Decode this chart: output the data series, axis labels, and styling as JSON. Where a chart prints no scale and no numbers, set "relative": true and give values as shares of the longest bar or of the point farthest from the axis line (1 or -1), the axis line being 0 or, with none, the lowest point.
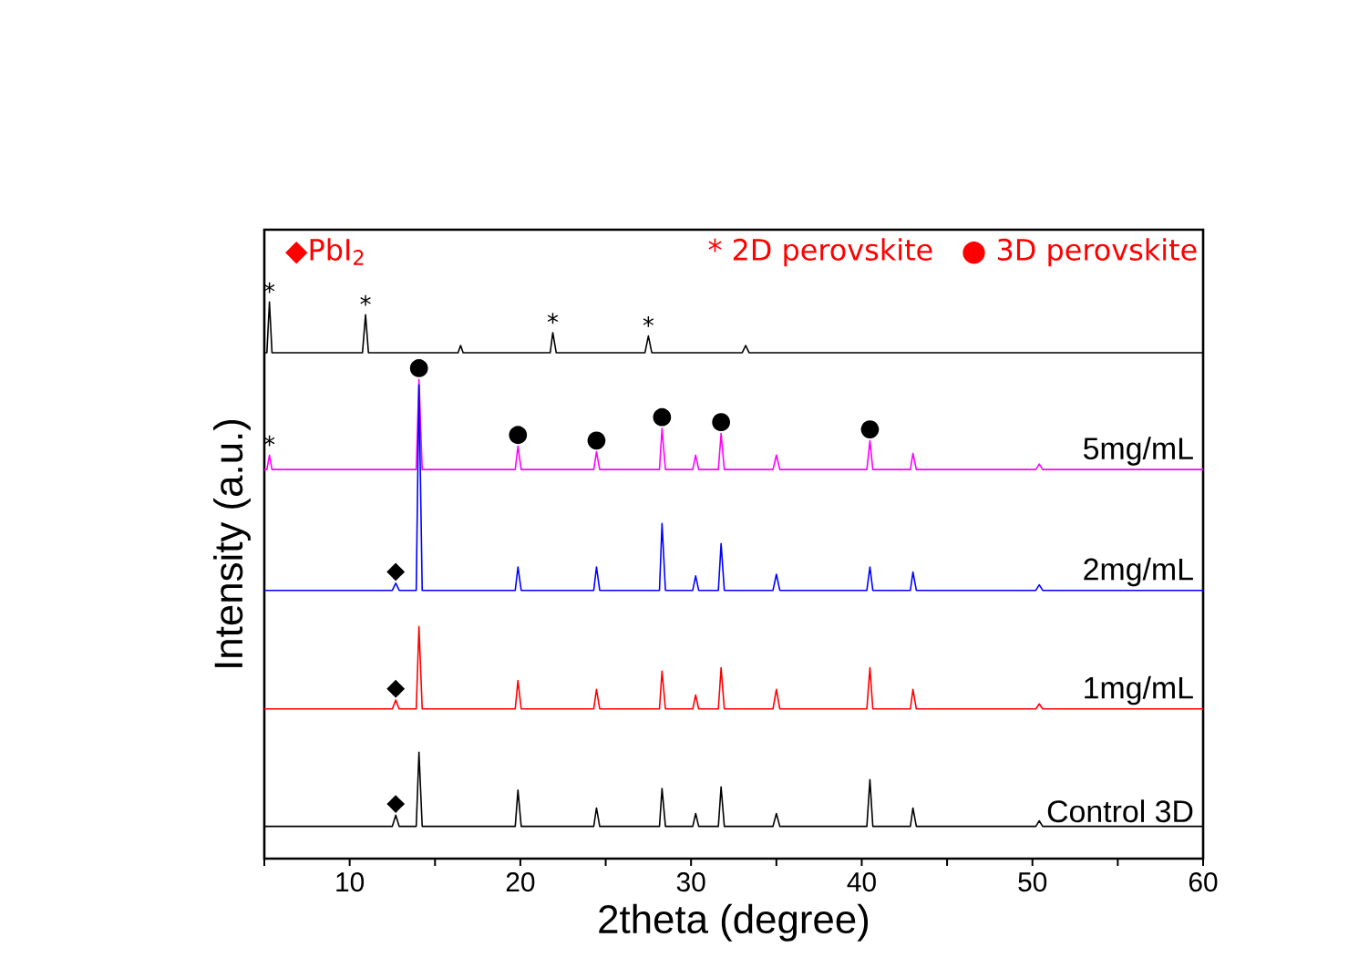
{
  "chart_data": {
    "type": "line",
    "relative": true,
    "xlabel": "2theta (degree)",
    "ylabel": "Intensity (a.u.)",
    "xlim": [
      5,
      60
    ],
    "xticks": [
      {
        "value": 5,
        "label": null
      },
      10,
      {
        "value": 15,
        "label": null
      },
      20,
      {
        "value": 25,
        "label": null
      },
      30,
      {
        "value": 35,
        "label": null
      },
      40,
      {
        "value": 45,
        "label": null
      },
      50,
      {
        "value": 55,
        "label": null
      },
      60
    ],
    "series": [
      {
        "color": "#000000",
        "x": [
          5,
          5.15,
          5.3,
          5.45,
          10.75,
          10.93,
          11.1,
          16.35,
          16.5,
          16.65,
          21.75,
          21.9,
          22.1,
          27.3,
          27.5,
          27.7,
          33.0,
          33.2,
          33.4,
          60
        ],
        "values": [
          0.909,
          0.909,
          1.0,
          0.909,
          0.909,
          0.977,
          0.909,
          0.909,
          0.922,
          0.909,
          0.909,
          0.945,
          0.909,
          0.909,
          0.939,
          0.909,
          0.909,
          0.922,
          0.909,
          0.909
        ]
      },
      {
        "name": "5mg/mL",
        "color": "#ff00ff",
        "x": [
          5,
          5.15,
          5.3,
          5.45,
          13.9,
          14.06,
          14.25,
          19.7,
          19.86,
          20.05,
          24.3,
          24.46,
          24.65,
          28.15,
          28.3,
          28.5,
          30.1,
          30.27,
          30.45,
          31.6,
          31.76,
          31.95,
          34.8,
          35.0,
          35.2,
          40.3,
          40.48,
          40.65,
          42.85,
          43.0,
          43.2,
          50.2,
          50.4,
          50.6,
          60
        ],
        "values": [
          0.699,
          0.699,
          0.725,
          0.699,
          0.699,
          0.861,
          0.699,
          0.699,
          0.741,
          0.699,
          0.699,
          0.731,
          0.699,
          0.699,
          0.773,
          0.699,
          0.699,
          0.725,
          0.699,
          0.699,
          0.764,
          0.699,
          0.699,
          0.725,
          0.699,
          0.699,
          0.751,
          0.699,
          0.699,
          0.728,
          0.699,
          0.699,
          0.709,
          0.699,
          0.699
        ]
      },
      {
        "name": "2mg/mL",
        "color": "#0000ff",
        "x": [
          5,
          12.5,
          12.7,
          12.9,
          13.9,
          14.06,
          14.25,
          19.7,
          19.86,
          20.05,
          24.3,
          24.46,
          24.65,
          28.15,
          28.3,
          28.5,
          30.1,
          30.27,
          30.45,
          31.6,
          31.76,
          31.95,
          34.8,
          35.0,
          35.2,
          40.3,
          40.48,
          40.65,
          42.85,
          43.0,
          43.2,
          50.2,
          50.4,
          50.6,
          60
        ],
        "values": [
          0.482,
          0.482,
          0.495,
          0.482,
          0.482,
          0.851,
          0.482,
          0.482,
          0.524,
          0.482,
          0.482,
          0.524,
          0.482,
          0.482,
          0.602,
          0.482,
          0.482,
          0.508,
          0.482,
          0.482,
          0.566,
          0.482,
          0.482,
          0.511,
          0.482,
          0.482,
          0.524,
          0.482,
          0.482,
          0.515,
          0.482,
          0.482,
          0.492,
          0.482,
          0.482
        ]
      },
      {
        "name": "1mg/mL",
        "color": "#ff0000",
        "x": [
          5,
          12.5,
          12.7,
          12.9,
          13.9,
          14.06,
          14.25,
          19.7,
          19.86,
          20.05,
          24.3,
          24.46,
          24.65,
          28.15,
          28.3,
          28.5,
          30.1,
          30.27,
          30.45,
          31.6,
          31.76,
          31.95,
          34.8,
          35.0,
          35.2,
          40.3,
          40.48,
          40.65,
          42.85,
          43.0,
          43.2,
          50.2,
          50.4,
          50.6,
          60
        ],
        "values": [
          0.269,
          0.269,
          0.285,
          0.269,
          0.269,
          0.417,
          0.269,
          0.269,
          0.32,
          0.269,
          0.269,
          0.304,
          0.269,
          0.269,
          0.337,
          0.269,
          0.269,
          0.294,
          0.269,
          0.269,
          0.343,
          0.269,
          0.269,
          0.304,
          0.269,
          0.269,
          0.343,
          0.269,
          0.269,
          0.304,
          0.269,
          0.269,
          0.278,
          0.269,
          0.269
        ]
      },
      {
        "name": "Control 3D",
        "color": "#000000",
        "x": [
          5,
          12.5,
          12.7,
          12.9,
          13.9,
          14.06,
          14.25,
          19.7,
          19.86,
          20.05,
          24.3,
          24.46,
          24.65,
          28.15,
          28.3,
          28.5,
          30.1,
          30.27,
          30.45,
          31.6,
          31.76,
          31.95,
          34.8,
          35.0,
          35.2,
          40.3,
          40.48,
          40.65,
          42.85,
          43.0,
          43.2,
          50.2,
          50.4,
          50.6,
          60
        ],
        "values": [
          0.058,
          0.058,
          0.078,
          0.058,
          0.058,
          0.191,
          0.058,
          0.058,
          0.123,
          0.058,
          0.058,
          0.091,
          0.058,
          0.058,
          0.126,
          0.058,
          0.058,
          0.081,
          0.058,
          0.058,
          0.129,
          0.058,
          0.058,
          0.081,
          0.058,
          0.058,
          0.142,
          0.058,
          0.058,
          0.091,
          0.058,
          0.058,
          0.068,
          0.058,
          0.058
        ]
      }
    ],
    "annotations": [
      "◆PbI$_{2}$",
      "* 2D perovskite",
      "● 3D perovskite",
      {
        "text": "*",
        "x": 5.3,
        "y": 1.0
      },
      {
        "text": "*",
        "x": 10.93,
        "y": 0.977
      },
      {
        "text": "*",
        "x": 21.9,
        "y": 0.945
      },
      {
        "text": "*",
        "x": 27.5,
        "y": 0.939
      },
      {
        "text": "*",
        "x": 5.3,
        "y": 0.725
      },
      {
        "text": "●",
        "x": 14.06,
        "y": 0.861
      },
      {
        "text": "●",
        "x": 19.86,
        "y": 0.741
      },
      {
        "text": "●",
        "x": 24.46,
        "y": 0.731
      },
      {
        "text": "●",
        "x": 28.3,
        "y": 0.773
      },
      {
        "text": "●",
        "x": 31.76,
        "y": 0.764
      },
      {
        "text": "●",
        "x": 40.48,
        "y": 0.751
      },
      {
        "text": "◆",
        "x": 12.7,
        "y": 0.495
      },
      {
        "text": "◆",
        "x": 12.7,
        "y": 0.285
      },
      {
        "text": "◆",
        "x": 12.7,
        "y": 0.078
      }
    ]
  }
}
